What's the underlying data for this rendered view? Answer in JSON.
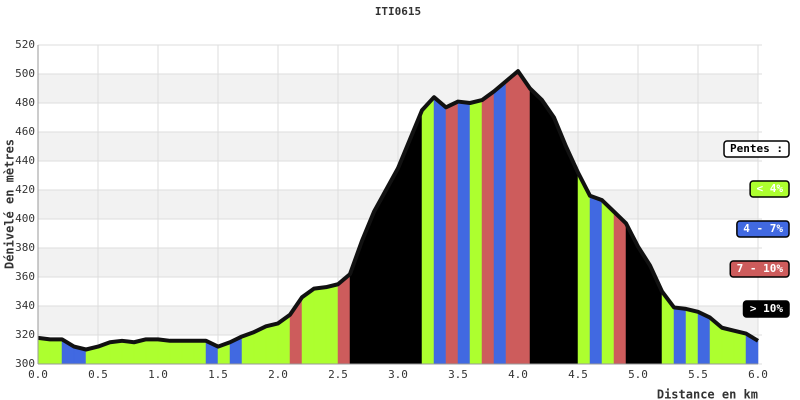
{
  "chart_data": {
    "type": "area",
    "title": "ITI0615",
    "x_label": "Distance en km",
    "y_label": "Dénivelé en mètres",
    "x": [
      0.0,
      0.1,
      0.2,
      0.3,
      0.4,
      0.5,
      0.6,
      0.7,
      0.8,
      0.9,
      1.0,
      1.1,
      1.2,
      1.3,
      1.4,
      1.5,
      1.6,
      1.7,
      1.8,
      1.9,
      2.0,
      2.1,
      2.2,
      2.3,
      2.4,
      2.5,
      2.6,
      2.7,
      2.8,
      2.9,
      3.0,
      3.1,
      3.2,
      3.3,
      3.4,
      3.5,
      3.6,
      3.7,
      3.8,
      3.9,
      4.0,
      4.1,
      4.2,
      4.3,
      4.4,
      4.5,
      4.6,
      4.7,
      4.8,
      4.9,
      5.0,
      5.1,
      5.2,
      5.3,
      5.4,
      5.5,
      5.6,
      5.7,
      5.8,
      5.9,
      6.0
    ],
    "series": [
      {
        "values": [
          318,
          317,
          317,
          312,
          310,
          312,
          315,
          316,
          315,
          317,
          317,
          316,
          316,
          316,
          316,
          312,
          315,
          319,
          322,
          326,
          328,
          334,
          346,
          352,
          353,
          355,
          362,
          385,
          405,
          420,
          435,
          455,
          475,
          484,
          477,
          481,
          480,
          482,
          488,
          495,
          502,
          490,
          482,
          470,
          450,
          432,
          416,
          413,
          405,
          397,
          381,
          368,
          350,
          339,
          338,
          336,
          332,
          325,
          323,
          321,
          316
        ],
        "line_color": "#111111",
        "segment_colors": [
          "#adff2f",
          "#adff2f",
          "#4169e1",
          "#4169e1",
          "#adff2f",
          "#adff2f",
          "#adff2f",
          "#adff2f",
          "#adff2f",
          "#adff2f",
          "#adff2f",
          "#adff2f",
          "#adff2f",
          "#adff2f",
          "#4169e1",
          "#adff2f",
          "#4169e1",
          "#adff2f",
          "#adff2f",
          "#adff2f",
          "#adff2f",
          "#cd5c5c",
          "#adff2f",
          "#adff2f",
          "#adff2f",
          "#cd5c5c",
          "#000000",
          "#000000",
          "#000000",
          "#000000",
          "#000000",
          "#000000",
          "#adff2f",
          "#4169e1",
          "#cd5c5c",
          "#4169e1",
          "#adff2f",
          "#cd5c5c",
          "#4169e1",
          "#cd5c5c",
          "#cd5c5c",
          "#000000",
          "#000000",
          "#000000",
          "#000000",
          "#adff2f",
          "#4169e1",
          "#adff2f",
          "#cd5c5c",
          "#000000",
          "#000000",
          "#000000",
          "#adff2f",
          "#4169e1",
          "#adff2f",
          "#4169e1",
          "#adff2f",
          "#adff2f",
          "#adff2f",
          "#4169e1"
        ]
      }
    ],
    "xlim": [
      0,
      6
    ],
    "ylim": [
      300,
      520
    ],
    "xticks": [
      {
        "value": 0,
        "label": "0.0"
      },
      {
        "value": 0.5,
        "label": "0.5"
      },
      {
        "value": 1,
        "label": "1.0"
      },
      {
        "value": 1.5,
        "label": "1.5"
      },
      {
        "value": 2,
        "label": "2.0"
      },
      {
        "value": 2.5,
        "label": "2.5"
      },
      {
        "value": 3,
        "label": "3.0"
      },
      {
        "value": 3.5,
        "label": "3.5"
      },
      {
        "value": 4,
        "label": "4.0"
      },
      {
        "value": 4.5,
        "label": "4.5"
      },
      {
        "value": 5,
        "label": "5.0"
      },
      {
        "value": 5.5,
        "label": "5.5"
      },
      {
        "value": 6,
        "label": "6.0"
      }
    ],
    "yticks": [
      300,
      320,
      340,
      360,
      380,
      400,
      420,
      440,
      460,
      480,
      500,
      520
    ],
    "grid": true,
    "legend": {
      "title": "Pentes :",
      "items": [
        {
          "label": "< 4%",
          "color": "#adff2f"
        },
        {
          "label": "4 - 7%",
          "color": "#4169e1"
        },
        {
          "label": "7 - 10%",
          "color": "#cd5c5c"
        },
        {
          "label": "> 10%",
          "color": "#000000"
        }
      ]
    }
  }
}
